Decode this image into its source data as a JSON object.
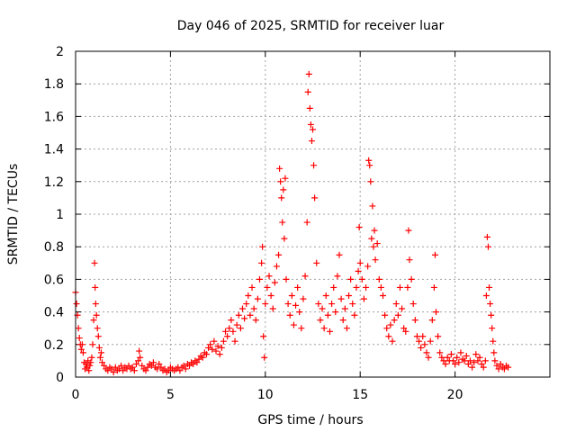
{
  "chart_data": {
    "type": "scatter",
    "title": "Day 046 of 2025, SRMTID for receiver luar",
    "xlabel": "GPS time / hours",
    "ylabel": "SRMTID / TECUs",
    "xlim": [
      0,
      25
    ],
    "ylim": [
      0,
      2
    ],
    "xticks": [
      "0",
      "5",
      "10",
      "15",
      "20"
    ],
    "xtick_values": [
      0,
      5,
      10,
      15,
      20
    ],
    "yticks": [
      "0",
      "0.2",
      "0.4",
      "0.6",
      "0.8",
      "1",
      "1.2",
      "1.4",
      "1.6",
      "1.8",
      "2"
    ],
    "ytick_values": [
      0,
      0.2,
      0.4,
      0.6,
      0.8,
      1.0,
      1.2,
      1.4,
      1.6,
      1.8,
      2.0
    ],
    "grid": true,
    "legend": "none",
    "marker": "plus",
    "series": [
      {
        "name": "SRMTID",
        "color": "#ff0000",
        "points": [
          [
            0.0,
            0.52
          ],
          [
            0.05,
            0.45
          ],
          [
            0.1,
            0.38
          ],
          [
            0.15,
            0.3
          ],
          [
            0.2,
            0.24
          ],
          [
            0.25,
            0.2
          ],
          [
            0.3,
            0.17
          ],
          [
            0.35,
            0.2
          ],
          [
            0.4,
            0.15
          ],
          [
            0.45,
            0.09
          ],
          [
            0.5,
            0.05
          ],
          [
            0.55,
            0.08
          ],
          [
            0.6,
            0.06
          ],
          [
            0.65,
            0.1
          ],
          [
            0.7,
            0.04
          ],
          [
            0.75,
            0.07
          ],
          [
            0.8,
            0.09
          ],
          [
            0.85,
            0.12
          ],
          [
            0.9,
            0.2
          ],
          [
            0.95,
            0.35
          ],
          [
            1.0,
            0.7
          ],
          [
            1.03,
            0.55
          ],
          [
            1.06,
            0.45
          ],
          [
            1.1,
            0.38
          ],
          [
            1.15,
            0.3
          ],
          [
            1.2,
            0.25
          ],
          [
            1.25,
            0.18
          ],
          [
            1.3,
            0.12
          ],
          [
            1.35,
            0.15
          ],
          [
            1.4,
            0.09
          ],
          [
            1.5,
            0.07
          ],
          [
            1.6,
            0.05
          ],
          [
            1.7,
            0.04
          ],
          [
            1.8,
            0.06
          ],
          [
            1.9,
            0.05
          ],
          [
            2.0,
            0.03
          ],
          [
            2.1,
            0.06
          ],
          [
            2.2,
            0.04
          ],
          [
            2.3,
            0.05
          ],
          [
            2.4,
            0.07
          ],
          [
            2.5,
            0.04
          ],
          [
            2.6,
            0.06
          ],
          [
            2.7,
            0.05
          ],
          [
            2.8,
            0.07
          ],
          [
            2.9,
            0.05
          ],
          [
            3.0,
            0.06
          ],
          [
            3.1,
            0.04
          ],
          [
            3.2,
            0.08
          ],
          [
            3.3,
            0.1
          ],
          [
            3.35,
            0.16
          ],
          [
            3.4,
            0.12
          ],
          [
            3.5,
            0.07
          ],
          [
            3.6,
            0.05
          ],
          [
            3.7,
            0.04
          ],
          [
            3.8,
            0.06
          ],
          [
            3.9,
            0.08
          ],
          [
            4.0,
            0.07
          ],
          [
            4.1,
            0.09
          ],
          [
            4.2,
            0.06
          ],
          [
            4.3,
            0.05
          ],
          [
            4.4,
            0.08
          ],
          [
            4.5,
            0.06
          ],
          [
            4.6,
            0.04
          ],
          [
            4.7,
            0.05
          ],
          [
            4.8,
            0.03
          ],
          [
            4.9,
            0.04
          ],
          [
            5.0,
            0.06
          ],
          [
            5.1,
            0.05
          ],
          [
            5.2,
            0.04
          ],
          [
            5.3,
            0.05
          ],
          [
            5.4,
            0.06
          ],
          [
            5.5,
            0.04
          ],
          [
            5.6,
            0.06
          ],
          [
            5.7,
            0.07
          ],
          [
            5.8,
            0.05
          ],
          [
            5.9,
            0.08
          ],
          [
            6.0,
            0.07
          ],
          [
            6.1,
            0.09
          ],
          [
            6.2,
            0.08
          ],
          [
            6.3,
            0.1
          ],
          [
            6.4,
            0.09
          ],
          [
            6.5,
            0.11
          ],
          [
            6.6,
            0.13
          ],
          [
            6.7,
            0.12
          ],
          [
            6.8,
            0.15
          ],
          [
            6.9,
            0.14
          ],
          [
            7.0,
            0.18
          ],
          [
            7.1,
            0.2
          ],
          [
            7.2,
            0.17
          ],
          [
            7.3,
            0.22
          ],
          [
            7.4,
            0.16
          ],
          [
            7.5,
            0.19
          ],
          [
            7.6,
            0.14
          ],
          [
            7.7,
            0.18
          ],
          [
            7.8,
            0.22
          ],
          [
            7.9,
            0.28
          ],
          [
            8.0,
            0.25
          ],
          [
            8.1,
            0.3
          ],
          [
            8.2,
            0.35
          ],
          [
            8.3,
            0.28
          ],
          [
            8.4,
            0.22
          ],
          [
            8.5,
            0.32
          ],
          [
            8.6,
            0.38
          ],
          [
            8.7,
            0.3
          ],
          [
            8.8,
            0.42
          ],
          [
            8.9,
            0.36
          ],
          [
            9.0,
            0.45
          ],
          [
            9.1,
            0.5
          ],
          [
            9.2,
            0.38
          ],
          [
            9.3,
            0.55
          ],
          [
            9.4,
            0.42
          ],
          [
            9.5,
            0.35
          ],
          [
            9.6,
            0.48
          ],
          [
            9.7,
            0.6
          ],
          [
            9.8,
            0.7
          ],
          [
            9.85,
            0.8
          ],
          [
            9.9,
            0.25
          ],
          [
            9.95,
            0.12
          ],
          [
            10.0,
            0.45
          ],
          [
            10.1,
            0.55
          ],
          [
            10.2,
            0.62
          ],
          [
            10.3,
            0.5
          ],
          [
            10.4,
            0.42
          ],
          [
            10.5,
            0.58
          ],
          [
            10.6,
            0.68
          ],
          [
            10.7,
            0.75
          ],
          [
            10.75,
            1.28
          ],
          [
            10.8,
            1.2
          ],
          [
            10.85,
            1.1
          ],
          [
            10.9,
            0.95
          ],
          [
            10.95,
            1.15
          ],
          [
            11.0,
            0.85
          ],
          [
            11.05,
            1.22
          ],
          [
            11.1,
            0.6
          ],
          [
            11.2,
            0.45
          ],
          [
            11.3,
            0.38
          ],
          [
            11.4,
            0.5
          ],
          [
            11.5,
            0.32
          ],
          [
            11.6,
            0.44
          ],
          [
            11.7,
            0.55
          ],
          [
            11.8,
            0.4
          ],
          [
            11.9,
            0.3
          ],
          [
            12.0,
            0.48
          ],
          [
            12.1,
            0.62
          ],
          [
            12.2,
            0.95
          ],
          [
            12.25,
            1.75
          ],
          [
            12.3,
            1.86
          ],
          [
            12.35,
            1.65
          ],
          [
            12.4,
            1.55
          ],
          [
            12.45,
            1.45
          ],
          [
            12.5,
            1.52
          ],
          [
            12.55,
            1.3
          ],
          [
            12.6,
            1.1
          ],
          [
            12.7,
            0.7
          ],
          [
            12.8,
            0.45
          ],
          [
            12.9,
            0.35
          ],
          [
            13.0,
            0.42
          ],
          [
            13.1,
            0.3
          ],
          [
            13.2,
            0.5
          ],
          [
            13.3,
            0.38
          ],
          [
            13.4,
            0.28
          ],
          [
            13.5,
            0.45
          ],
          [
            13.6,
            0.55
          ],
          [
            13.7,
            0.4
          ],
          [
            13.8,
            0.62
          ],
          [
            13.9,
            0.75
          ],
          [
            14.0,
            0.48
          ],
          [
            14.1,
            0.35
          ],
          [
            14.2,
            0.42
          ],
          [
            14.3,
            0.3
          ],
          [
            14.4,
            0.5
          ],
          [
            14.5,
            0.6
          ],
          [
            14.6,
            0.45
          ],
          [
            14.7,
            0.38
          ],
          [
            14.8,
            0.55
          ],
          [
            14.9,
            0.65
          ],
          [
            14.95,
            0.92
          ],
          [
            15.0,
            0.7
          ],
          [
            15.1,
            0.6
          ],
          [
            15.2,
            0.48
          ],
          [
            15.3,
            0.55
          ],
          [
            15.4,
            0.68
          ],
          [
            15.45,
            1.33
          ],
          [
            15.5,
            1.3
          ],
          [
            15.55,
            1.2
          ],
          [
            15.6,
            0.85
          ],
          [
            15.65,
            1.05
          ],
          [
            15.7,
            0.8
          ],
          [
            15.75,
            0.9
          ],
          [
            15.8,
            0.72
          ],
          [
            15.9,
            0.82
          ],
          [
            16.0,
            0.6
          ],
          [
            16.1,
            0.55
          ],
          [
            16.2,
            0.5
          ],
          [
            16.3,
            0.38
          ],
          [
            16.4,
            0.3
          ],
          [
            16.5,
            0.25
          ],
          [
            16.6,
            0.32
          ],
          [
            16.7,
            0.22
          ],
          [
            16.8,
            0.35
          ],
          [
            16.9,
            0.45
          ],
          [
            17.0,
            0.38
          ],
          [
            17.1,
            0.55
          ],
          [
            17.2,
            0.42
          ],
          [
            17.3,
            0.3
          ],
          [
            17.4,
            0.28
          ],
          [
            17.5,
            0.55
          ],
          [
            17.55,
            0.9
          ],
          [
            17.6,
            0.72
          ],
          [
            17.7,
            0.6
          ],
          [
            17.8,
            0.45
          ],
          [
            17.9,
            0.35
          ],
          [
            18.0,
            0.25
          ],
          [
            18.1,
            0.22
          ],
          [
            18.2,
            0.18
          ],
          [
            18.3,
            0.25
          ],
          [
            18.4,
            0.2
          ],
          [
            18.5,
            0.15
          ],
          [
            18.6,
            0.12
          ],
          [
            18.7,
            0.22
          ],
          [
            18.8,
            0.35
          ],
          [
            18.9,
            0.55
          ],
          [
            18.95,
            0.75
          ],
          [
            19.0,
            0.4
          ],
          [
            19.1,
            0.25
          ],
          [
            19.2,
            0.15
          ],
          [
            19.3,
            0.12
          ],
          [
            19.4,
            0.1
          ],
          [
            19.5,
            0.08
          ],
          [
            19.6,
            0.12
          ],
          [
            19.7,
            0.1
          ],
          [
            19.8,
            0.14
          ],
          [
            19.9,
            0.1
          ],
          [
            20.0,
            0.08
          ],
          [
            20.1,
            0.12
          ],
          [
            20.2,
            0.09
          ],
          [
            20.3,
            0.15
          ],
          [
            20.4,
            0.11
          ],
          [
            20.5,
            0.1
          ],
          [
            20.6,
            0.13
          ],
          [
            20.7,
            0.08
          ],
          [
            20.8,
            0.1
          ],
          [
            20.9,
            0.06
          ],
          [
            21.0,
            0.09
          ],
          [
            21.1,
            0.14
          ],
          [
            21.2,
            0.1
          ],
          [
            21.3,
            0.12
          ],
          [
            21.4,
            0.08
          ],
          [
            21.5,
            0.06
          ],
          [
            21.6,
            0.1
          ],
          [
            21.65,
            0.5
          ],
          [
            21.7,
            0.86
          ],
          [
            21.75,
            0.8
          ],
          [
            21.8,
            0.55
          ],
          [
            21.85,
            0.45
          ],
          [
            21.9,
            0.38
          ],
          [
            21.95,
            0.3
          ],
          [
            22.0,
            0.22
          ],
          [
            22.05,
            0.15
          ],
          [
            22.1,
            0.1
          ],
          [
            22.2,
            0.07
          ],
          [
            22.3,
            0.05
          ],
          [
            22.4,
            0.08
          ],
          [
            22.5,
            0.06
          ],
          [
            22.6,
            0.05
          ],
          [
            22.7,
            0.07
          ],
          [
            22.8,
            0.06
          ]
        ]
      }
    ]
  }
}
